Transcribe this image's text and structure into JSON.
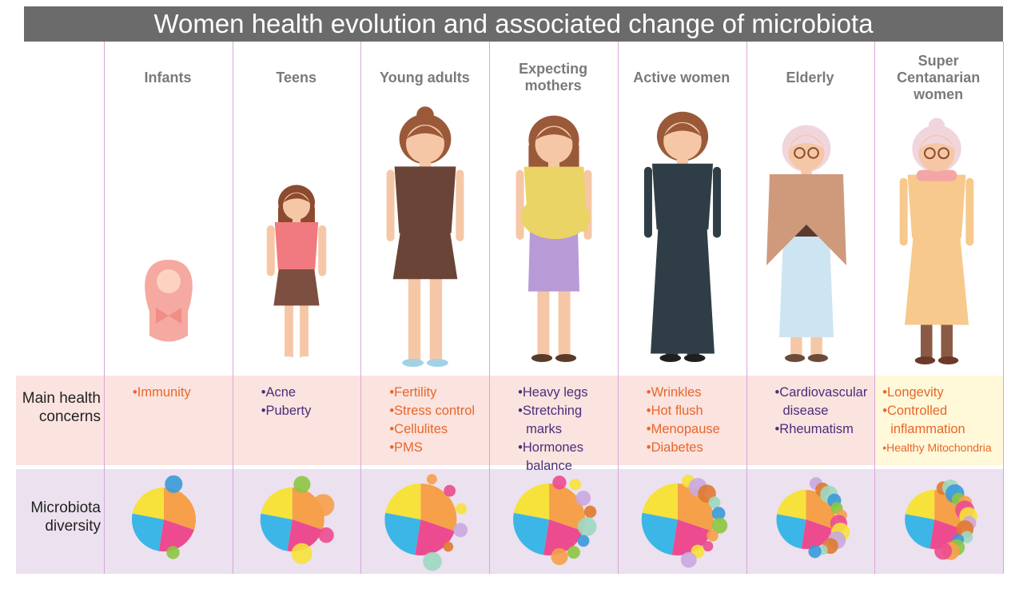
{
  "title": "Women health evolution and associated change of microbiota",
  "row_labels": [
    "Main health concerns",
    "Microbiota diversity"
  ],
  "columns": [
    {
      "label": "Infants",
      "color": "#e8662a",
      "concerns": [
        "Immunity"
      ]
    },
    {
      "label": "Teens",
      "color": "#4b2e7a",
      "concerns": [
        "Acne",
        "Puberty"
      ]
    },
    {
      "label": "Young adults",
      "color": "#e8662a",
      "concerns": [
        "Fertility",
        "Stress control",
        "Cellulites",
        "PMS"
      ]
    },
    {
      "label": "Expecting mothers",
      "color": "#4b2e7a",
      "concerns": [
        "Heavy legs",
        "Stretching marks",
        "Hormones balance"
      ]
    },
    {
      "label": "Active women",
      "color": "#e8662a",
      "concerns": [
        "Wrinkles",
        "Hot flush",
        "Menopause",
        "Diabetes"
      ]
    },
    {
      "label": "Elderly",
      "color": "#4b2e7a",
      "concerns": [
        "Cardiovascular disease",
        "Rheumatism"
      ]
    },
    {
      "label": "Super Centanarian women",
      "color": "#e8662a",
      "concerns": [
        "Longevity",
        "Controlled inflammation",
        "Healthy Mitochondria"
      ]
    }
  ]
}
